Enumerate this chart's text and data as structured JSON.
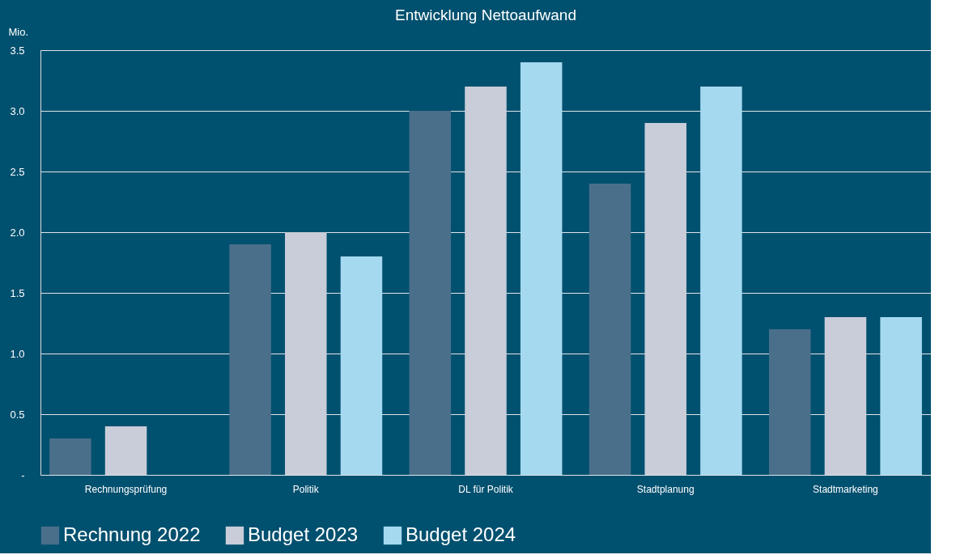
{
  "chart_data": {
    "type": "bar",
    "title": "Entwicklung Nettoaufwand",
    "ylabel": "Mio.",
    "categories": [
      "Rechnungsprüfung",
      "Politik",
      "DL für Politik",
      "Stadtplanung",
      "Stadtmarketing"
    ],
    "series": [
      {
        "name": "Rechnung 2022",
        "color": "#4a6f8a",
        "values": [
          0.3,
          1.9,
          3.0,
          2.4,
          1.2
        ]
      },
      {
        "name": "Budget 2023",
        "color": "#c9cdd9",
        "values": [
          0.4,
          2.0,
          3.2,
          2.9,
          1.3
        ]
      },
      {
        "name": "Budget 2024",
        "color": "#a4d9f0",
        "values": [
          null,
          1.8,
          3.4,
          3.2,
          1.3
        ]
      }
    ],
    "ylim": [
      0,
      3.5
    ],
    "yticks": [
      {
        "value": 0,
        "label": "-"
      },
      0.5,
      {
        "value": 1,
        "label": "1.0"
      },
      1.5,
      {
        "value": 2,
        "label": "2.0"
      },
      2.5,
      {
        "value": 3,
        "label": "3.0"
      },
      3.5
    ],
    "grid": "y",
    "legend": "bottom"
  }
}
